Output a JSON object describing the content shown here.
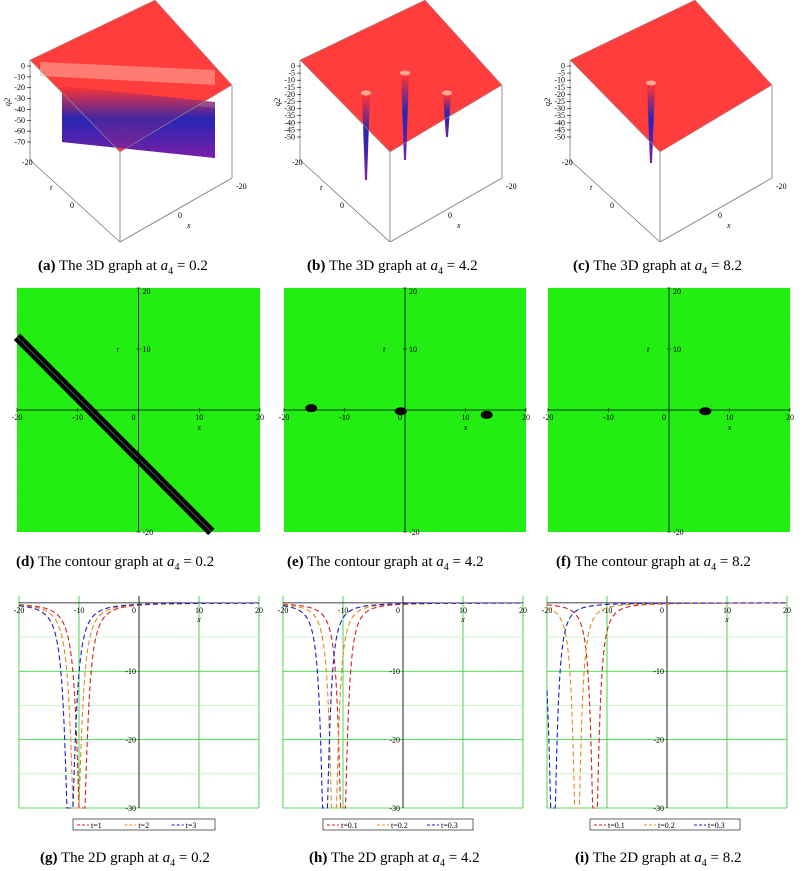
{
  "colors": {
    "surface": "#ff3333",
    "surface_edge": "#e62e2e",
    "well_blue": "#2626b3",
    "well_purple": "#7a1fa8",
    "contour_green": "#22ee11",
    "contour_black": "#000000",
    "grid_green": "#22cc22",
    "series_red": "#d62020",
    "series_orange": "#e08a1e",
    "series_blue": "#1a1acc"
  },
  "captions": [
    {
      "id": "a",
      "label": "(a)",
      "text": "The 3D graph at",
      "param_base": "a",
      "param_sub": "4",
      "value": "= 0.2"
    },
    {
      "id": "b",
      "label": "(b)",
      "text": "The 3D graph at",
      "param_base": "a",
      "param_sub": "4",
      "value": "= 4.2"
    },
    {
      "id": "c",
      "label": "(c)",
      "text": "The 3D graph at",
      "param_base": "a",
      "param_sub": "4",
      "value": "= 8.2"
    },
    {
      "id": "d",
      "label": "(d)",
      "text": "The contour graph at",
      "param_base": "a",
      "param_sub": "4",
      "value": "= 0.2"
    },
    {
      "id": "e",
      "label": "(e)",
      "text": "The contour graph at",
      "param_base": "a",
      "param_sub": "4",
      "value": "= 4.2"
    },
    {
      "id": "f",
      "label": "(f)",
      "text": "The contour graph at",
      "param_base": "a",
      "param_sub": "4",
      "value": "= 8.2"
    },
    {
      "id": "g",
      "label": "(g)",
      "text": "The 2D graph at",
      "param_base": "a",
      "param_sub": "4",
      "value": "= 0.2"
    },
    {
      "id": "h",
      "label": "(h)",
      "text": "The 2D graph at",
      "param_base": "a",
      "param_sub": "4",
      "value": "= 4.2"
    },
    {
      "id": "i",
      "label": "(i)",
      "text": "The 2D graph at",
      "param_base": "a",
      "param_sub": "4",
      "value": "= 8.2"
    }
  ],
  "chart_data": [
    {
      "id": "a",
      "type": "surface3d",
      "zlabel": "q2",
      "xlabel": "x",
      "tlabel": "t",
      "zticks": [
        "0",
        "-10",
        "-20",
        "-30",
        "-40",
        "-50",
        "-60",
        "-70"
      ],
      "x_tick_labels": [
        "-20",
        "0"
      ],
      "t_tick_labels": [
        "-20",
        "0"
      ],
      "feature": "trough along a line"
    },
    {
      "id": "b",
      "type": "surface3d",
      "zlabel": "q2",
      "xlabel": "x",
      "tlabel": "t",
      "zticks": [
        "0",
        "-5",
        "-10",
        "-15",
        "-20",
        "-25",
        "-30",
        "-35",
        "-40",
        "-45",
        "-50"
      ],
      "x_tick_labels": [
        "-20",
        "0"
      ],
      "t_tick_labels": [
        "-20",
        "0"
      ],
      "feature": "three localized spikes"
    },
    {
      "id": "c",
      "type": "surface3d",
      "zlabel": "q2",
      "xlabel": "x",
      "tlabel": "t",
      "zticks": [
        "0",
        "-5",
        "-10",
        "-15",
        "-20",
        "-25",
        "-30",
        "-35",
        "-40",
        "-45",
        "-50"
      ],
      "x_tick_labels": [
        "-20",
        "0"
      ],
      "t_tick_labels": [
        "-20",
        "0"
      ],
      "feature": "one localized spike"
    },
    {
      "id": "d",
      "type": "contour",
      "xlabel": "x",
      "ylabel": "t",
      "xlim": [
        -20,
        20
      ],
      "ylim": [
        -20,
        20
      ],
      "xticks": [
        "-20",
        "-10",
        "0",
        "10",
        "20"
      ],
      "yticks": [
        "20",
        "10",
        "-20"
      ],
      "band": {
        "from": [
          -20,
          12
        ],
        "to": [
          12,
          -20
        ]
      }
    },
    {
      "id": "e",
      "type": "contour",
      "xlabel": "x",
      "ylabel": "t",
      "xlim": [
        -20,
        20
      ],
      "ylim": [
        -20,
        20
      ],
      "xticks": [
        "-20",
        "-10",
        "0",
        "10",
        "20"
      ],
      "yticks": [
        "20",
        "10",
        "-20"
      ],
      "blobs": [
        {
          "x": -15.5,
          "y": 0.3
        },
        {
          "x": -0.7,
          "y": -0.2
        },
        {
          "x": 13.5,
          "y": -0.8
        }
      ]
    },
    {
      "id": "f",
      "type": "contour",
      "xlabel": "x",
      "ylabel": "t",
      "xlim": [
        -20,
        20
      ],
      "ylim": [
        -20,
        20
      ],
      "xticks": [
        "-20",
        "-10",
        "0",
        "10",
        "20"
      ],
      "yticks": [
        "20",
        "10",
        "-20"
      ],
      "blobs": [
        {
          "x": 6,
          "y": -0.2
        }
      ]
    },
    {
      "id": "g",
      "type": "line",
      "xlabel": "x",
      "xlim": [
        -20,
        20
      ],
      "ylim": [
        -30,
        1
      ],
      "xticks": [
        "-20",
        "-10",
        "0",
        "10",
        "20"
      ],
      "yticks": [
        "-10",
        "-20",
        "-30"
      ],
      "series": [
        {
          "name": "t=1",
          "color": "series_red",
          "center": -9.5,
          "width": 0.9
        },
        {
          "name": "t=2",
          "color": "series_orange",
          "center": -10.5,
          "width": 0.9
        },
        {
          "name": "t=3",
          "color": "series_blue",
          "center": -11.5,
          "width": 0.9
        }
      ]
    },
    {
      "id": "h",
      "type": "line",
      "xlabel": "x",
      "xlim": [
        -20,
        20
      ],
      "ylim": [
        -30,
        1
      ],
      "xticks": [
        "-20",
        "-10",
        "0",
        "10",
        "20"
      ],
      "yticks": [
        "-10",
        "-20",
        "-30"
      ],
      "series": [
        {
          "name": "t=0.1",
          "color": "series_red",
          "center": -10,
          "width": 0.75
        },
        {
          "name": "t=0.2",
          "color": "series_orange",
          "center": -11.5,
          "width": 0.75
        },
        {
          "name": "t=0.3",
          "color": "series_blue",
          "center": -13,
          "width": 0.75
        }
      ]
    },
    {
      "id": "i",
      "type": "line",
      "xlabel": "x",
      "xlim": [
        -20,
        20
      ],
      "ylim": [
        -30,
        1
      ],
      "xticks": [
        "-20",
        "-10",
        "0",
        "10",
        "20"
      ],
      "yticks": [
        "-10",
        "-20",
        "-30"
      ],
      "series": [
        {
          "name": "t=0.1",
          "color": "series_red",
          "center": -12,
          "width": 0.7
        },
        {
          "name": "t=0.2",
          "color": "series_orange",
          "center": -15,
          "width": 0.7
        },
        {
          "name": "t=0.3",
          "color": "series_blue",
          "center": -19,
          "width": 0.7
        }
      ]
    }
  ]
}
